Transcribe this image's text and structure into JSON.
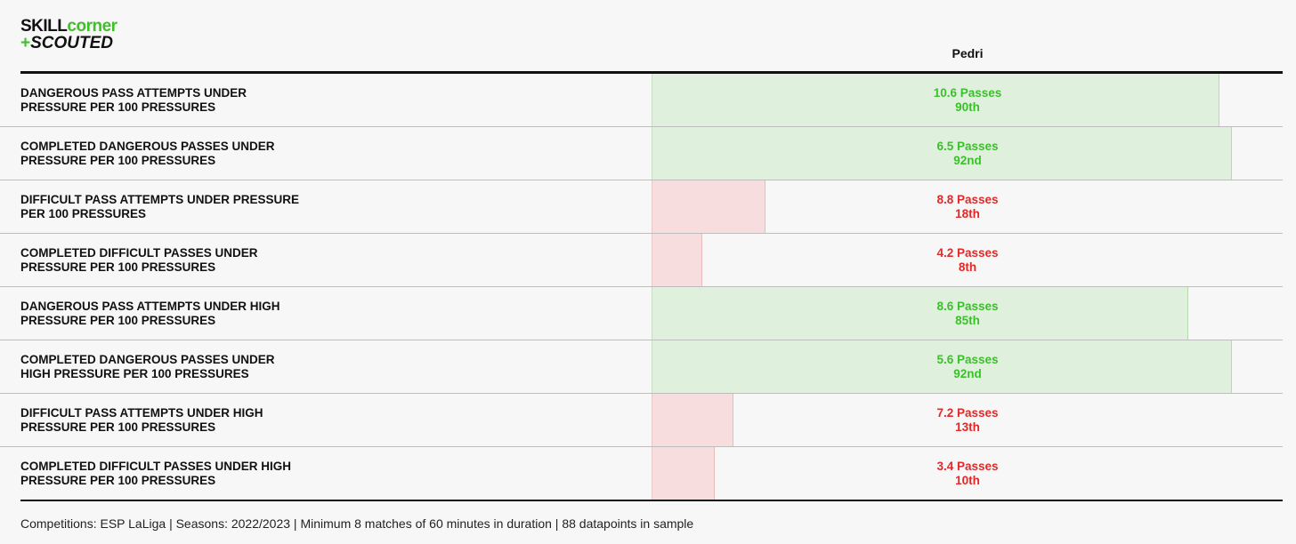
{
  "logo": {
    "skill": "SKILL",
    "corner": "corner",
    "plus": "+",
    "scouted": "SCOUTED"
  },
  "player": "Pedri",
  "footer": "Competitions: ESP LaLiga | Seasons: 2022/2023 | Minimum 8 matches of 60 minutes in duration | 88 datapoints in sample",
  "colors": {
    "good": "#3cbf2c",
    "bad": "#e02a2a",
    "good_bar": "#dff0dc",
    "bad_bar": "#f7dddd"
  },
  "chart_data": {
    "type": "bar",
    "orientation": "horizontal",
    "value_unit": "Passes",
    "bar_measure": "percentile",
    "xlim": [
      0,
      100
    ],
    "categories": [
      "DANGEROUS PASS ATTEMPTS UNDER PRESSURE PER 100 PRESSURES",
      "COMPLETED DANGEROUS PASSES UNDER PRESSURE PER 100 PRESSURES",
      "DIFFICULT PASS ATTEMPTS UNDER PRESSURE PER 100 PRESSURES",
      "COMPLETED DIFFICULT PASSES UNDER PRESSURE PER 100 PRESSURES",
      "DANGEROUS PASS ATTEMPTS UNDER HIGH PRESSURE PER 100 PRESSURES",
      "COMPLETED DANGEROUS PASSES UNDER HIGH PRESSURE PER 100 PRESSURES",
      "DIFFICULT PASS ATTEMPTS UNDER HIGH PRESSURE PER 100 PRESSURES",
      "COMPLETED DIFFICULT PASSES UNDER HIGH PRESSURE PER 100 PRESSURES"
    ],
    "series": [
      {
        "name": "Pedri",
        "values": [
          10.6,
          6.5,
          8.8,
          4.2,
          8.6,
          5.6,
          7.2,
          3.4
        ],
        "percentiles": [
          90,
          92,
          18,
          8,
          85,
          92,
          13,
          10
        ],
        "value_labels": [
          "10.6 Passes",
          "6.5 Passes",
          "8.8 Passes",
          "4.2 Passes",
          "8.6 Passes",
          "5.6 Passes",
          "7.2 Passes",
          "3.4 Passes"
        ],
        "percentile_labels": [
          "90th",
          "92nd",
          "18th",
          "8th",
          "85th",
          "92nd",
          "13th",
          "10th"
        ]
      }
    ]
  }
}
